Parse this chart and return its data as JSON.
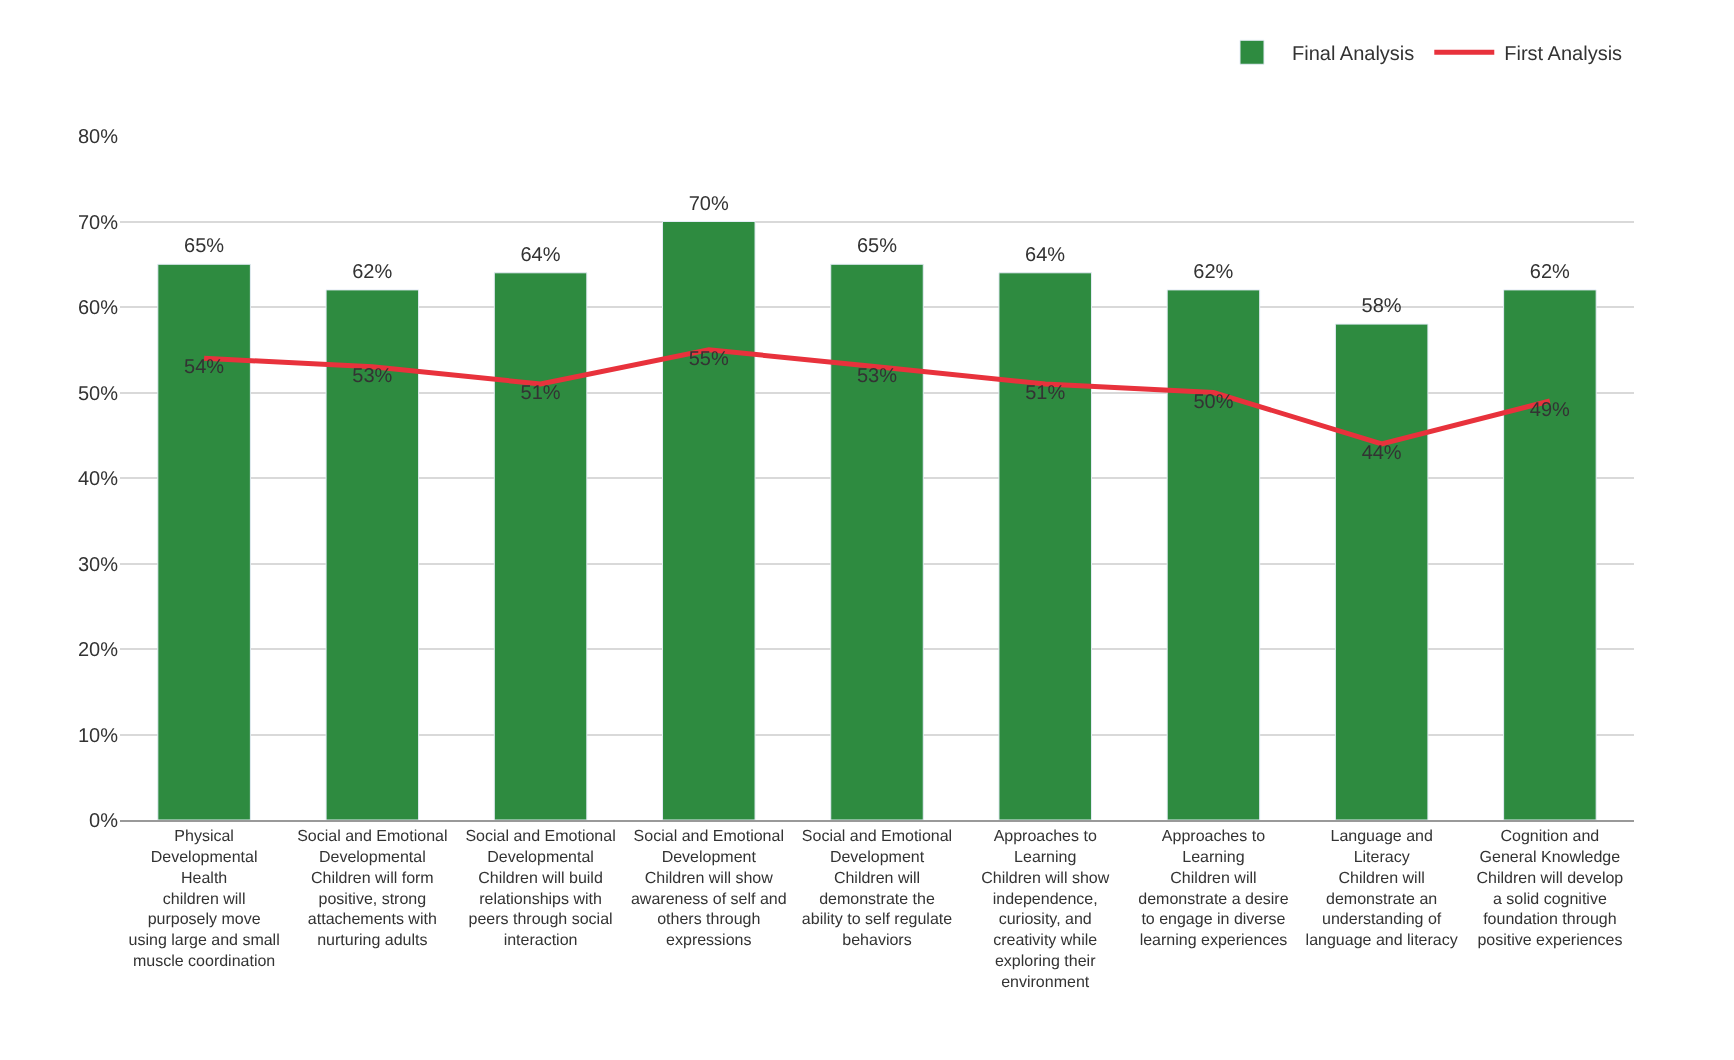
{
  "chart_data": {
    "type": "bar",
    "categories": [
      "Physical\nDevelopmental\nHealth\nchildren will\npurposely move\nusing large and small\nmuscle coordination",
      "Social and Emotional\nDevelopmental\nChildren will form\npositive, strong\nattachements with\nnurturing adults",
      "Social and Emotional\nDevelopmental\nChildren will build\nrelationships with\npeers through social\ninteraction",
      "Social and Emotional\nDevelopment\nChildren will show\nawareness of self and\nothers through\nexpressions",
      "Social and Emotional\nDevelopment\nChildren will\ndemonstrate the\nability to self regulate\nbehaviors",
      "Approaches to\nLearning\nChildren will show\nindependence,\ncuriosity, and\ncreativity while\nexploring their\nenvironment",
      "Approaches to\nLearning\nChildren will\ndemonstrate a desire\nto engage in diverse\nlearning experiences",
      "Language and\nLiteracy\nChildren will\ndemonstrate an\nunderstanding of\nlanguage and literacy",
      "Cognition and\nGeneral Knowledge\nChildren will develop\na solid cognitive\nfoundation through\npositive experiences"
    ],
    "series": [
      {
        "name": "Final Analysis",
        "color": "#2e8b40",
        "values": [
          65,
          62,
          64,
          70,
          65,
          64,
          62,
          58,
          62
        ],
        "value_labels": [
          "65%",
          "62%",
          "64%",
          "70%",
          "65%",
          "64%",
          "62%",
          "58%",
          "62%"
        ]
      },
      {
        "name": "First Analysis",
        "type": "line",
        "color": "#e8323c",
        "values": [
          54,
          53,
          51,
          55,
          53,
          51,
          50,
          44,
          49
        ],
        "value_labels": [
          "54%",
          "53%",
          "51%",
          "55%",
          "53%",
          "51%",
          "50%",
          "44%",
          "49%"
        ]
      }
    ],
    "ylim": [
      0,
      80
    ],
    "yticks": [
      {
        "value": 0,
        "label": "0%"
      },
      {
        "value": 10,
        "label": "10%"
      },
      {
        "value": 20,
        "label": "20%"
      },
      {
        "value": 30,
        "label": "30%"
      },
      {
        "value": 40,
        "label": "40%"
      },
      {
        "value": 50,
        "label": "50%"
      },
      {
        "value": 60,
        "label": "60%"
      },
      {
        "value": 70,
        "label": "70%"
      },
      {
        "value": 80,
        "label": "80%"
      }
    ],
    "grid": "y",
    "legend": "top right",
    "marker": "none",
    "line_style": "solid"
  }
}
